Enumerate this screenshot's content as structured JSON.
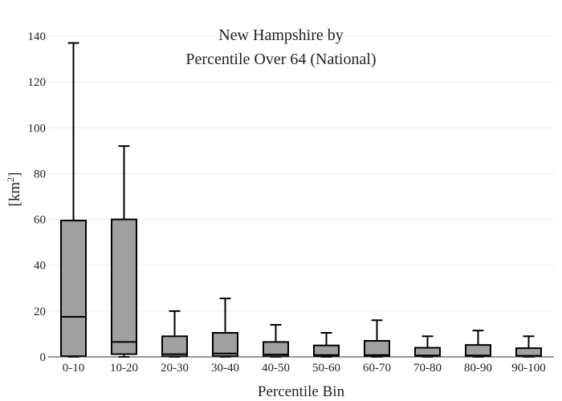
{
  "chart_data": {
    "type": "box",
    "title_lines": [
      "New Hampshire  by",
      "Percentile Over 64 (National)"
    ],
    "xlabel": "Percentile Bin",
    "ylabel_base": "[km",
    "ylabel_sup": "2",
    "ylabel_end": "]",
    "ylim": [
      0,
      140
    ],
    "yticks": [
      0,
      20,
      40,
      60,
      80,
      100,
      120,
      140
    ],
    "box_color": "#a0a0a0",
    "categories": [
      "0-10",
      "10-20",
      "20-30",
      "30-40",
      "40-50",
      "50-60",
      "60-70",
      "70-80",
      "80-90",
      "90-100"
    ],
    "boxes": [
      {
        "min": 0,
        "q1": 0.3,
        "median": 17.5,
        "q3": 59.5,
        "max": 137
      },
      {
        "min": 0,
        "q1": 1.2,
        "median": 6.5,
        "q3": 60,
        "max": 92
      },
      {
        "min": 0,
        "q1": 0.2,
        "median": 1.2,
        "q3": 9,
        "max": 20
      },
      {
        "min": 0,
        "q1": 0.3,
        "median": 1.5,
        "q3": 10.5,
        "max": 25.5
      },
      {
        "min": 0,
        "q1": 0.2,
        "median": 1,
        "q3": 6.5,
        "max": 14
      },
      {
        "min": 0,
        "q1": 0.2,
        "median": 0.8,
        "q3": 5,
        "max": 10.5
      },
      {
        "min": 0,
        "q1": 0.2,
        "median": 0.8,
        "q3": 7,
        "max": 16
      },
      {
        "min": 0,
        "q1": 0.2,
        "median": 0.6,
        "q3": 4,
        "max": 9
      },
      {
        "min": 0,
        "q1": 0.2,
        "median": 0.6,
        "q3": 5.2,
        "max": 11.5
      },
      {
        "min": 0,
        "q1": 0.2,
        "median": 0.5,
        "q3": 3.8,
        "max": 9
      }
    ]
  }
}
